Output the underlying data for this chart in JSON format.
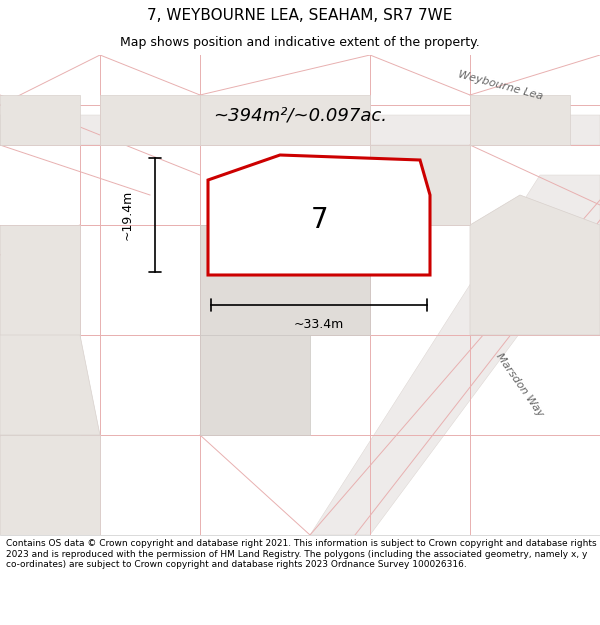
{
  "title": "7, WEYBOURNE LEA, SEAHAM, SR7 7WE",
  "subtitle": "Map shows position and indicative extent of the property.",
  "footer": "Contains OS data © Crown copyright and database right 2021. This information is subject to Crown copyright and database rights 2023 and is reproduced with the permission of HM Land Registry. The polygons (including the associated geometry, namely x, y co-ordinates) are subject to Crown copyright and database rights 2023 Ordnance Survey 100026316.",
  "area_text": "~394m²/~0.097ac.",
  "label_7": "7",
  "dim_width": "~33.4m",
  "dim_height": "~19.4m",
  "road_label_1": "Weybourne Lea",
  "road_label_2": "Marsdon Way",
  "bg_color": "#f0eeec",
  "map_bg": "#f0eeec",
  "building_fill": "#dcdcdc",
  "building_stroke": "#c0b8b0",
  "plot_fill": "#ffffff",
  "plot_stroke": "#ff0000",
  "road_fill": "#ffffff",
  "dim_color": "#333333",
  "title_fontsize": 11,
  "subtitle_fontsize": 9,
  "footer_fontsize": 6.5
}
